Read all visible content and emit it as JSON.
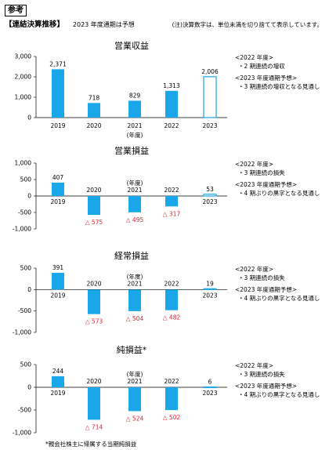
{
  "page": {
    "badge": "参考",
    "section_title": "【連結決算推移】",
    "forecast_note": "2023 年度通期は予想",
    "rounding_note": "(注)決算数字は、単位未満を切り捨てて表示しています。",
    "footnote": "*親会社株主に帰属する当期純損益"
  },
  "colors": {
    "bar": "#1aa7ea",
    "negative_label": "#e3262f",
    "forecast_fill": "#ffffff"
  },
  "chart_data": [
    {
      "type": "bar",
      "title": "営業収益",
      "categories": [
        "2019",
        "2020",
        "2021",
        "2022",
        "2023"
      ],
      "category_notes": [
        "",
        "",
        "(年度)",
        "",
        ""
      ],
      "values": [
        2371,
        718,
        829,
        1313,
        2006
      ],
      "value_labels": [
        "2,371",
        "718",
        "829",
        "1,313",
        "2,006"
      ],
      "forecast_index": 4,
      "ylim": [
        0,
        3000
      ],
      "yticks": [
        0,
        1000,
        2000,
        3000
      ],
      "ytick_labels": [
        "0",
        "1,000",
        "2,000",
        "3,000"
      ],
      "notes": [
        "<2022 年度>",
        "・2 期連続の増収",
        "<2023 年度通期予想>",
        "・3 期連続の増収となる見通し"
      ]
    },
    {
      "type": "bar",
      "title": "営業損益",
      "categories": [
        "2019",
        "2020",
        "2021",
        "2022",
        "2023"
      ],
      "category_notes": [
        "",
        "",
        "(年度)",
        "",
        ""
      ],
      "values": [
        407,
        -575,
        -495,
        -317,
        53
      ],
      "value_labels": [
        "407",
        "△ 575",
        "△ 495",
        "△ 317",
        "53"
      ],
      "forecast_index": 4,
      "ylim": [
        -1000,
        1000
      ],
      "yticks": [
        -1000,
        -500,
        0,
        500,
        1000
      ],
      "ytick_labels": [
        "-1,000",
        "-500",
        "0",
        "500",
        "1,000"
      ],
      "notes": [
        "<2022 年度>",
        "・3 期連続の損失",
        "<2023 年度通期予想>",
        "・4 期ぶりの黒字となる見通し"
      ]
    },
    {
      "type": "bar",
      "title": "経常損益",
      "categories": [
        "2019",
        "2020",
        "2021",
        "2022",
        "2023"
      ],
      "category_notes": [
        "",
        "",
        "(年度)",
        "",
        ""
      ],
      "values": [
        391,
        -573,
        -504,
        -482,
        19
      ],
      "value_labels": [
        "391",
        "△ 573",
        "△ 504",
        "△ 482",
        "19"
      ],
      "forecast_index": 4,
      "ylim": [
        -1000,
        500
      ],
      "yticks": [
        -1000,
        -500,
        0,
        500
      ],
      "ytick_labels": [
        "-1,000",
        "-500",
        "0",
        "500"
      ],
      "notes": [
        "<2022 年度>",
        "・3 期連続の損失",
        "<2023 年度通期予想>",
        "・4 期ぶりの黒字となる見通し"
      ]
    },
    {
      "type": "bar",
      "title": "純損益*",
      "categories": [
        "2019",
        "2020",
        "2021",
        "2022",
        "2023"
      ],
      "category_notes": [
        "",
        "",
        "(年度)",
        "",
        ""
      ],
      "values": [
        244,
        -714,
        -524,
        -502,
        6
      ],
      "value_labels": [
        "244",
        "△ 714",
        "△ 524",
        "△ 502",
        "6"
      ],
      "forecast_index": 4,
      "ylim": [
        -1000,
        500
      ],
      "yticks": [
        -1000,
        -500,
        0,
        500
      ],
      "ytick_labels": [
        "-1,000",
        "-500",
        "0",
        "500"
      ],
      "notes": [
        "<2022 年度>",
        "・3 期連続の損失",
        "<2023 年度通期予想>",
        "・4 期ぶりの黒字となる見通し"
      ]
    }
  ]
}
